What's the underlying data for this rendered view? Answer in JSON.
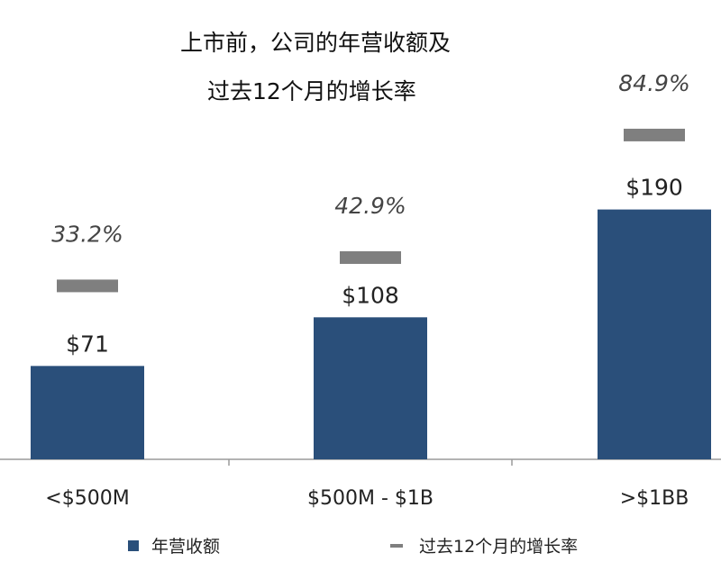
{
  "chart_data": {
    "type": "bar",
    "title_lines": [
      "上市前，公司的年营收额及",
      "过去12个月的增长率"
    ],
    "categories": [
      "<$500M",
      "$500M - $1B",
      ">$1BB"
    ],
    "series": [
      {
        "name": "年营收额",
        "kind": "bar",
        "values": [
          71,
          108,
          190
        ],
        "labels": [
          "$71",
          "$108",
          "$190"
        ],
        "color": "#2a4f7a"
      },
      {
        "name": "过去12个月的增长率",
        "kind": "marker",
        "values": [
          33.2,
          42.9,
          84.9
        ],
        "labels": [
          "33.2%",
          "42.9%",
          "84.9%"
        ],
        "color": "#7f7f7f"
      }
    ],
    "legend_position": "bottom",
    "grid": false
  }
}
